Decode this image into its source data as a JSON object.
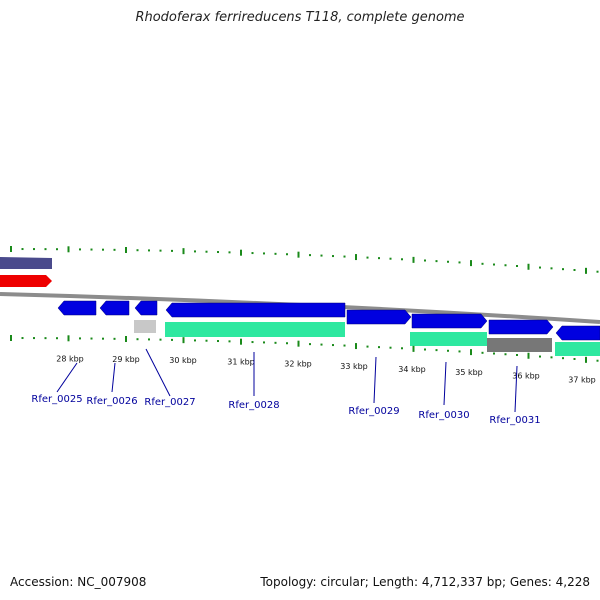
{
  "title": "Rhodoferax ferrireducens T118, complete genome",
  "footer": {
    "accession": "Accession: NC_007908",
    "summary": "Topology: circular; Length: 4,712,337 bp; Genes: 4,228"
  },
  "colors": {
    "tick": "#1a8a1a",
    "backbone": "#8c8c8c",
    "gene_forward": "#0000e0",
    "gene_label": "#00009c",
    "cds_teal": "#2ee8a0",
    "cds_gray": "#777777",
    "red_feature": "#ee0000",
    "purple_feature": "#4a4a8c"
  },
  "scale_labels": [
    "28 kbp",
    "29 kbp",
    "30 kbp",
    "31 kbp",
    "32 kbp",
    "33 kbp",
    "34 kbp",
    "35 kbp",
    "36 kbp",
    "37 kbp"
  ],
  "gene_labels": [
    "Rfer_0025",
    "Rfer_0026",
    "Rfer_0027",
    "Rfer_0028",
    "Rfer_0029",
    "Rfer_0030",
    "Rfer_0031"
  ]
}
